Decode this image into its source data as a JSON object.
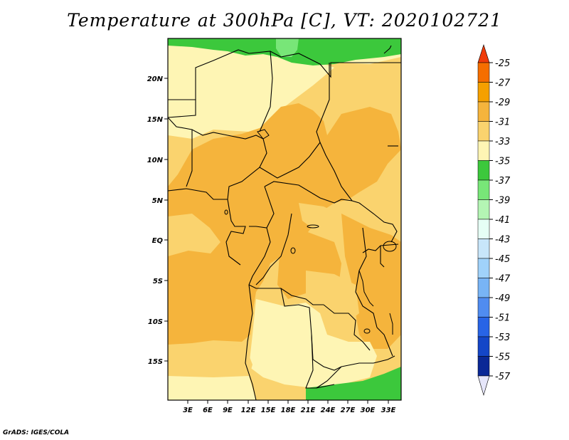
{
  "title": "Temperature at 300hPa [C], VT: 2020102721",
  "credit": "GrADS: IGES/COLA",
  "map": {
    "y_labels": [
      "20N",
      "15N",
      "10N",
      "5N",
      "EQ",
      "5S",
      "10S",
      "15S"
    ],
    "x_labels": [
      "3E",
      "6E",
      "9E",
      "12E",
      "15E",
      "18E",
      "21E",
      "24E",
      "27E",
      "30E",
      "33E"
    ]
  },
  "colorbar": {
    "labels": [
      "-25",
      "-27",
      "-29",
      "-31",
      "-33",
      "-35",
      "-37",
      "-39",
      "-41",
      "-43",
      "-45",
      "-47",
      "-49",
      "-51",
      "-53",
      "-55",
      "-57"
    ],
    "colors": [
      "#f03c0a",
      "#f56e00",
      "#f5a000",
      "#f5b43c",
      "#fad36e",
      "#fef5b4",
      "#3cc83c",
      "#78e678",
      "#b4f5b4",
      "#e6fff5",
      "#c8e6fa",
      "#a0d2fa",
      "#78b4f5",
      "#508cf0",
      "#2864e6",
      "#1446c8",
      "#0a2896",
      "#000a64",
      "#e6e6fa"
    ]
  },
  "field": {
    "colors": {
      "warm": "#f5b43c",
      "mid": "#fad36e",
      "cool": "#fef5b4",
      "green": "#3cc83c",
      "lightgreen": "#78e678"
    }
  }
}
